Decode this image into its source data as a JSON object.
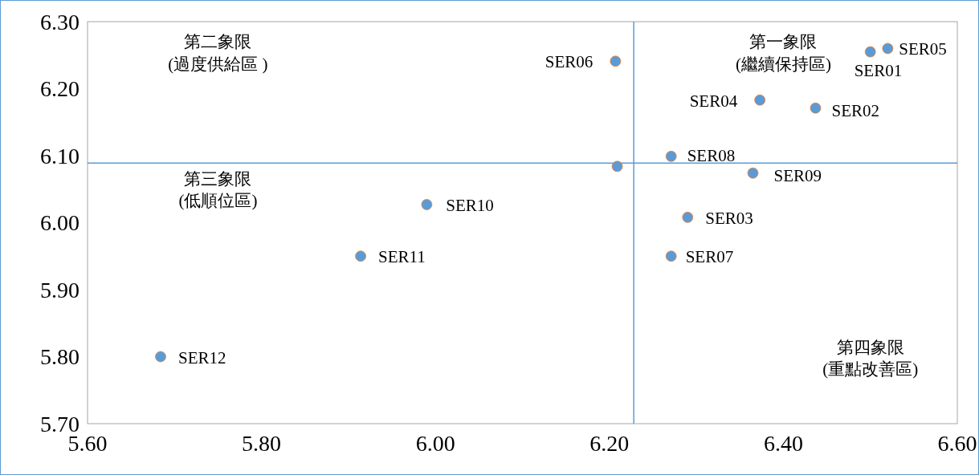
{
  "chart_data": {
    "type": "scatter",
    "x": [
      6.52,
      6.5,
      6.207,
      6.373,
      6.437,
      6.271,
      6.209,
      6.365,
      5.99,
      6.29,
      6.271,
      5.914,
      5.684
    ],
    "series": [
      {
        "color": "#5b9bd5",
        "values": [
          6.26,
          6.255,
          6.241,
          6.183,
          6.171,
          6.099,
          6.084,
          6.074,
          6.027,
          6.008,
          5.95,
          5.95,
          5.8
        ]
      }
    ],
    "marker": "circle",
    "xlim": [
      5.6,
      6.6
    ],
    "ylim": [
      5.7,
      6.3
    ],
    "xticks": [
      {
        "value": 5.6,
        "label": "5.60"
      },
      {
        "value": 5.8,
        "label": "5.80"
      },
      {
        "value": 6.0,
        "label": "6.00"
      },
      {
        "value": 6.2,
        "label": "6.20"
      },
      {
        "value": 6.4,
        "label": "6.40"
      },
      {
        "value": 6.6,
        "label": "6.60"
      }
    ],
    "yticks": [
      {
        "value": 5.7,
        "label": "5.70"
      },
      {
        "value": 5.8,
        "label": "5.80"
      },
      {
        "value": 5.9,
        "label": "5.90"
      },
      {
        "value": 6.0,
        "label": "6.00"
      },
      {
        "value": 6.1,
        "label": "6.10"
      },
      {
        "value": 6.2,
        "label": "6.20"
      },
      {
        "value": 6.3,
        "label": "6.30"
      }
    ],
    "grid": false,
    "ref_lines": [
      {
        "axis": "x",
        "value": 6.228,
        "color": "#5b9bd5"
      },
      {
        "axis": "y",
        "value": 6.089,
        "color": "#5b9bd5"
      }
    ],
    "annotations": [
      {
        "text": "SER05",
        "x": 6.52,
        "y": 6.26
      },
      {
        "text": "SER01",
        "x": 6.5,
        "y": 6.255
      },
      {
        "text": "SER06",
        "x": 6.207,
        "y": 6.241
      },
      {
        "text": "SER04",
        "x": 6.373,
        "y": 6.183
      },
      {
        "text": "SER02",
        "x": 6.437,
        "y": 6.171
      },
      {
        "text": "SER08",
        "x": 6.271,
        "y": 6.099
      },
      {
        "text": "SER09",
        "x": 6.365,
        "y": 6.074
      },
      {
        "text": "SER10",
        "x": 5.99,
        "y": 6.027
      },
      {
        "text": "SER03",
        "x": 6.29,
        "y": 6.008
      },
      {
        "text": "SER07",
        "x": 6.271,
        "y": 5.95
      },
      {
        "text": "SER11",
        "x": 5.914,
        "y": 5.95
      },
      {
        "text": "SER12",
        "x": 5.684,
        "y": 5.8
      },
      "第一象限\n(繼續保持區)",
      "第二象限\n(過度供給區 )",
      "第三象限\n(低順位區)",
      "第四象限\n(重點改善區)"
    ]
  }
}
